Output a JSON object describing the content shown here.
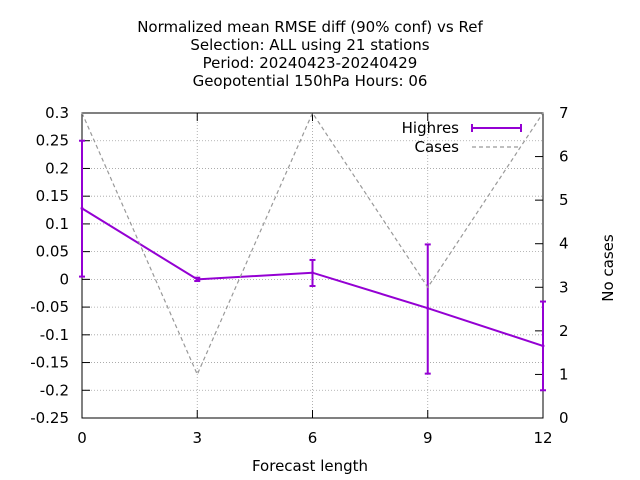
{
  "chart_data": {
    "type": "line",
    "title_lines": [
      "Normalized mean RMSE diff (90% conf) vs Ref",
      "Selection: ALL using    21 stations",
      "Period: 20240423-20240429",
      "Geopotential 150hPa   Hours:  06"
    ],
    "xlabel": "Forecast length",
    "ylabel": "",
    "y2label": "No cases",
    "x": [
      0,
      3,
      6,
      9,
      12
    ],
    "xlim": [
      0,
      12
    ],
    "xticks": [
      0,
      3,
      6,
      9,
      12
    ],
    "ylim": [
      -0.25,
      0.3
    ],
    "yticks": [
      -0.25,
      -0.2,
      -0.15,
      -0.1,
      -0.05,
      0,
      0.05,
      0.1,
      0.15,
      0.2,
      0.25,
      0.3
    ],
    "y2lim": [
      0,
      7
    ],
    "y2ticks": [
      0,
      1,
      2,
      3,
      4,
      5,
      6,
      7
    ],
    "grid": true,
    "legend_position": "top-right",
    "series": [
      {
        "name": "Highres",
        "axis": "y",
        "color": "#9400d3",
        "style": "solid-errorbars",
        "values": [
          0.128,
          0.0,
          0.012,
          -0.052,
          -0.12
        ],
        "err_low": [
          0.005,
          -0.003,
          -0.012,
          -0.17,
          -0.2
        ],
        "err_high": [
          0.25,
          0.003,
          0.035,
          0.063,
          -0.04
        ]
      },
      {
        "name": "Cases",
        "axis": "y2",
        "color": "#999999",
        "style": "dashed",
        "values": [
          7,
          1,
          7,
          3,
          7
        ]
      }
    ]
  }
}
